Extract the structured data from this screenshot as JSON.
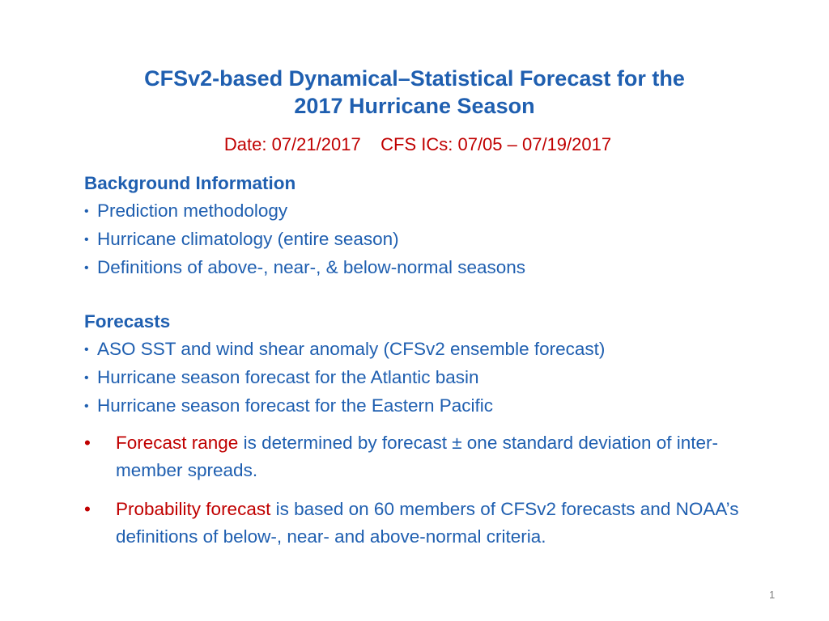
{
  "title": {
    "line1": "CFSv2-based Dynamical–Statistical Forecast for the",
    "line2": "2017 Hurricane Season"
  },
  "dateline": {
    "date": "Date: 07/21/2017",
    "ics": "CFS ICs: 07/05 – 07/19/2017"
  },
  "background": {
    "heading": "Background Information",
    "items": [
      "Prediction methodology",
      "Hurricane climatology (entire season)",
      "Definitions of above-, near-, & below-normal seasons"
    ]
  },
  "forecasts": {
    "heading": "Forecasts",
    "items": [
      "ASO SST and wind shear anomaly (CFSv2 ensemble forecast)",
      "Hurricane season forecast for the Atlantic basin",
      "Hurricane season forecast for the Eastern Pacific"
    ]
  },
  "notes": [
    {
      "bullet": "•",
      "term": "Forecast range",
      "text": " is determined by forecast ± one standard deviation of inter-member spreads."
    },
    {
      "bullet": "•",
      "term": "Probability forecast",
      "text": " is based on 60 members of CFSv2 forecasts and NOAA’s definitions of below-, near- and above-normal criteria."
    }
  ],
  "page_number": "1",
  "colors": {
    "blue": "#1f5fb0",
    "red": "#c00000"
  }
}
